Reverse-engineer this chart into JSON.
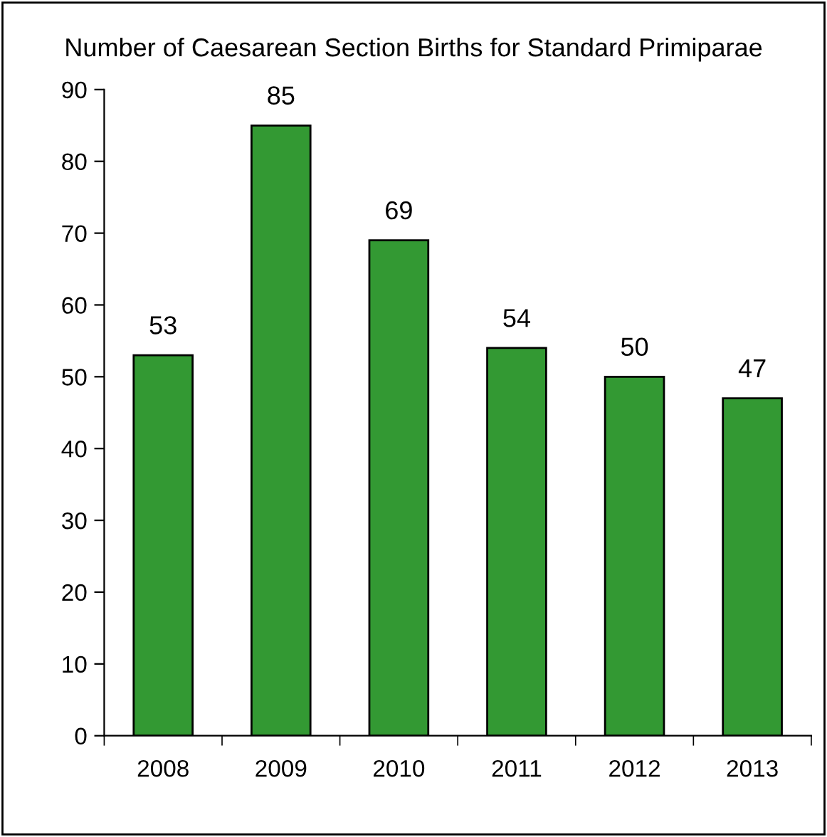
{
  "chart_data": {
    "type": "bar",
    "title": "Number of Caesarean Section Births for Standard Primiparae",
    "categories": [
      "2008",
      "2009",
      "2010",
      "2011",
      "2012",
      "2013"
    ],
    "values": [
      53,
      85,
      69,
      54,
      50,
      47
    ],
    "color": "#339933",
    "ylim": [
      0,
      90
    ],
    "yticks": [
      0,
      10,
      20,
      30,
      40,
      50,
      60,
      70,
      80,
      90
    ],
    "data_labels": true,
    "grid": false,
    "legend": false
  }
}
